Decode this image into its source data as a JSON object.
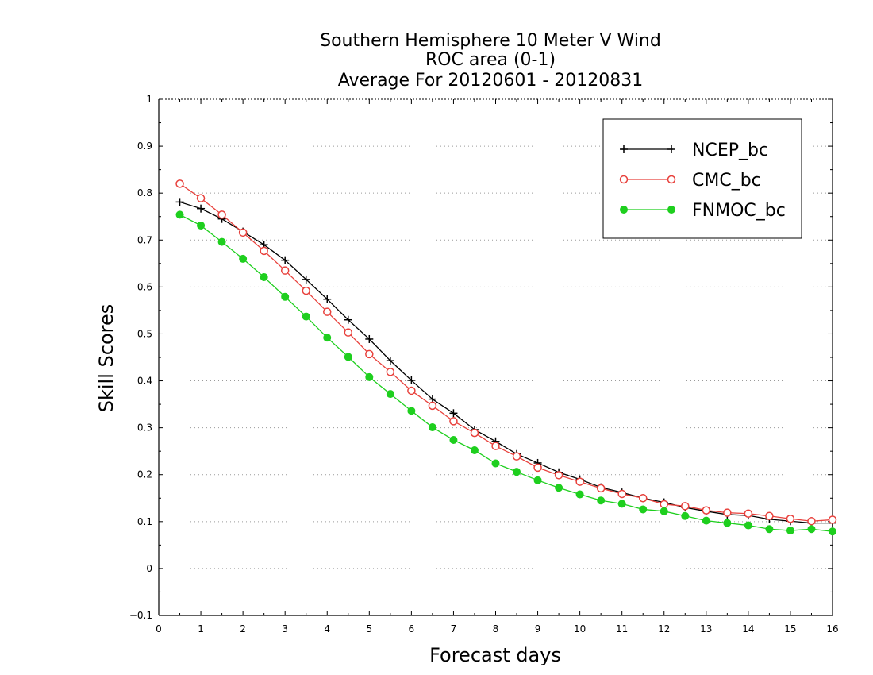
{
  "chart_data": {
    "type": "line",
    "title": [
      "Southern Hemisphere 10 Meter V Wind",
      "ROC area (0-1)",
      "Average For 20120601 - 20120831"
    ],
    "xlabel": "Forecast days",
    "ylabel": "Skill Scores",
    "xlim": [
      0,
      16
    ],
    "ylim": [
      -0.1,
      1
    ],
    "xticks": [
      0,
      1,
      2,
      3,
      4,
      5,
      6,
      7,
      8,
      9,
      10,
      11,
      12,
      13,
      14,
      15,
      16
    ],
    "yticks": [
      -0.1,
      0,
      0.1,
      0.2,
      0.3,
      0.4,
      0.5,
      0.6,
      0.7,
      0.8,
      0.9,
      1
    ],
    "ytick_labels": [
      "−0.1",
      "0",
      "0.1",
      "0.2",
      "0.3",
      "0.4",
      "0.5",
      "0.6",
      "0.7",
      "0.8",
      "0.9",
      "1"
    ],
    "grid": "horizontal dotted",
    "legend_position": "top-right",
    "x": [
      0.5,
      1,
      1.5,
      2,
      2.5,
      3,
      3.5,
      4,
      4.5,
      5,
      5.5,
      6,
      6.5,
      7,
      7.5,
      8,
      8.5,
      9,
      9.5,
      10,
      10.5,
      11,
      11.5,
      12,
      12.5,
      13,
      13.5,
      14,
      14.5,
      15,
      15.5,
      16
    ],
    "series": [
      {
        "name": "NCEP_bc",
        "color": "#000000",
        "marker": "plus",
        "values": [
          0.781,
          0.767,
          0.745,
          0.718,
          0.69,
          0.657,
          0.616,
          0.574,
          0.53,
          0.489,
          0.443,
          0.401,
          0.361,
          0.331,
          0.296,
          0.271,
          0.244,
          0.225,
          0.205,
          0.19,
          0.173,
          0.162,
          0.15,
          0.141,
          0.13,
          0.122,
          0.115,
          0.113,
          0.105,
          0.101,
          0.097,
          0.097
        ]
      },
      {
        "name": "CMC_bc",
        "color": "#e8413c",
        "marker": "open-circle",
        "values": [
          0.82,
          0.789,
          0.754,
          0.716,
          0.677,
          0.635,
          0.592,
          0.547,
          0.503,
          0.457,
          0.419,
          0.379,
          0.347,
          0.314,
          0.289,
          0.261,
          0.239,
          0.215,
          0.199,
          0.185,
          0.171,
          0.159,
          0.15,
          0.137,
          0.133,
          0.124,
          0.119,
          0.117,
          0.112,
          0.106,
          0.101,
          0.104
        ]
      },
      {
        "name": "FNMOC_bc",
        "color": "#1ecf1e",
        "marker": "filled-circle",
        "values": [
          0.754,
          0.731,
          0.696,
          0.66,
          0.621,
          0.579,
          0.537,
          0.492,
          0.451,
          0.408,
          0.372,
          0.336,
          0.301,
          0.274,
          0.252,
          0.224,
          0.206,
          0.188,
          0.172,
          0.158,
          0.145,
          0.138,
          0.126,
          0.122,
          0.112,
          0.102,
          0.097,
          0.092,
          0.084,
          0.081,
          0.084,
          0.079
        ]
      }
    ]
  }
}
